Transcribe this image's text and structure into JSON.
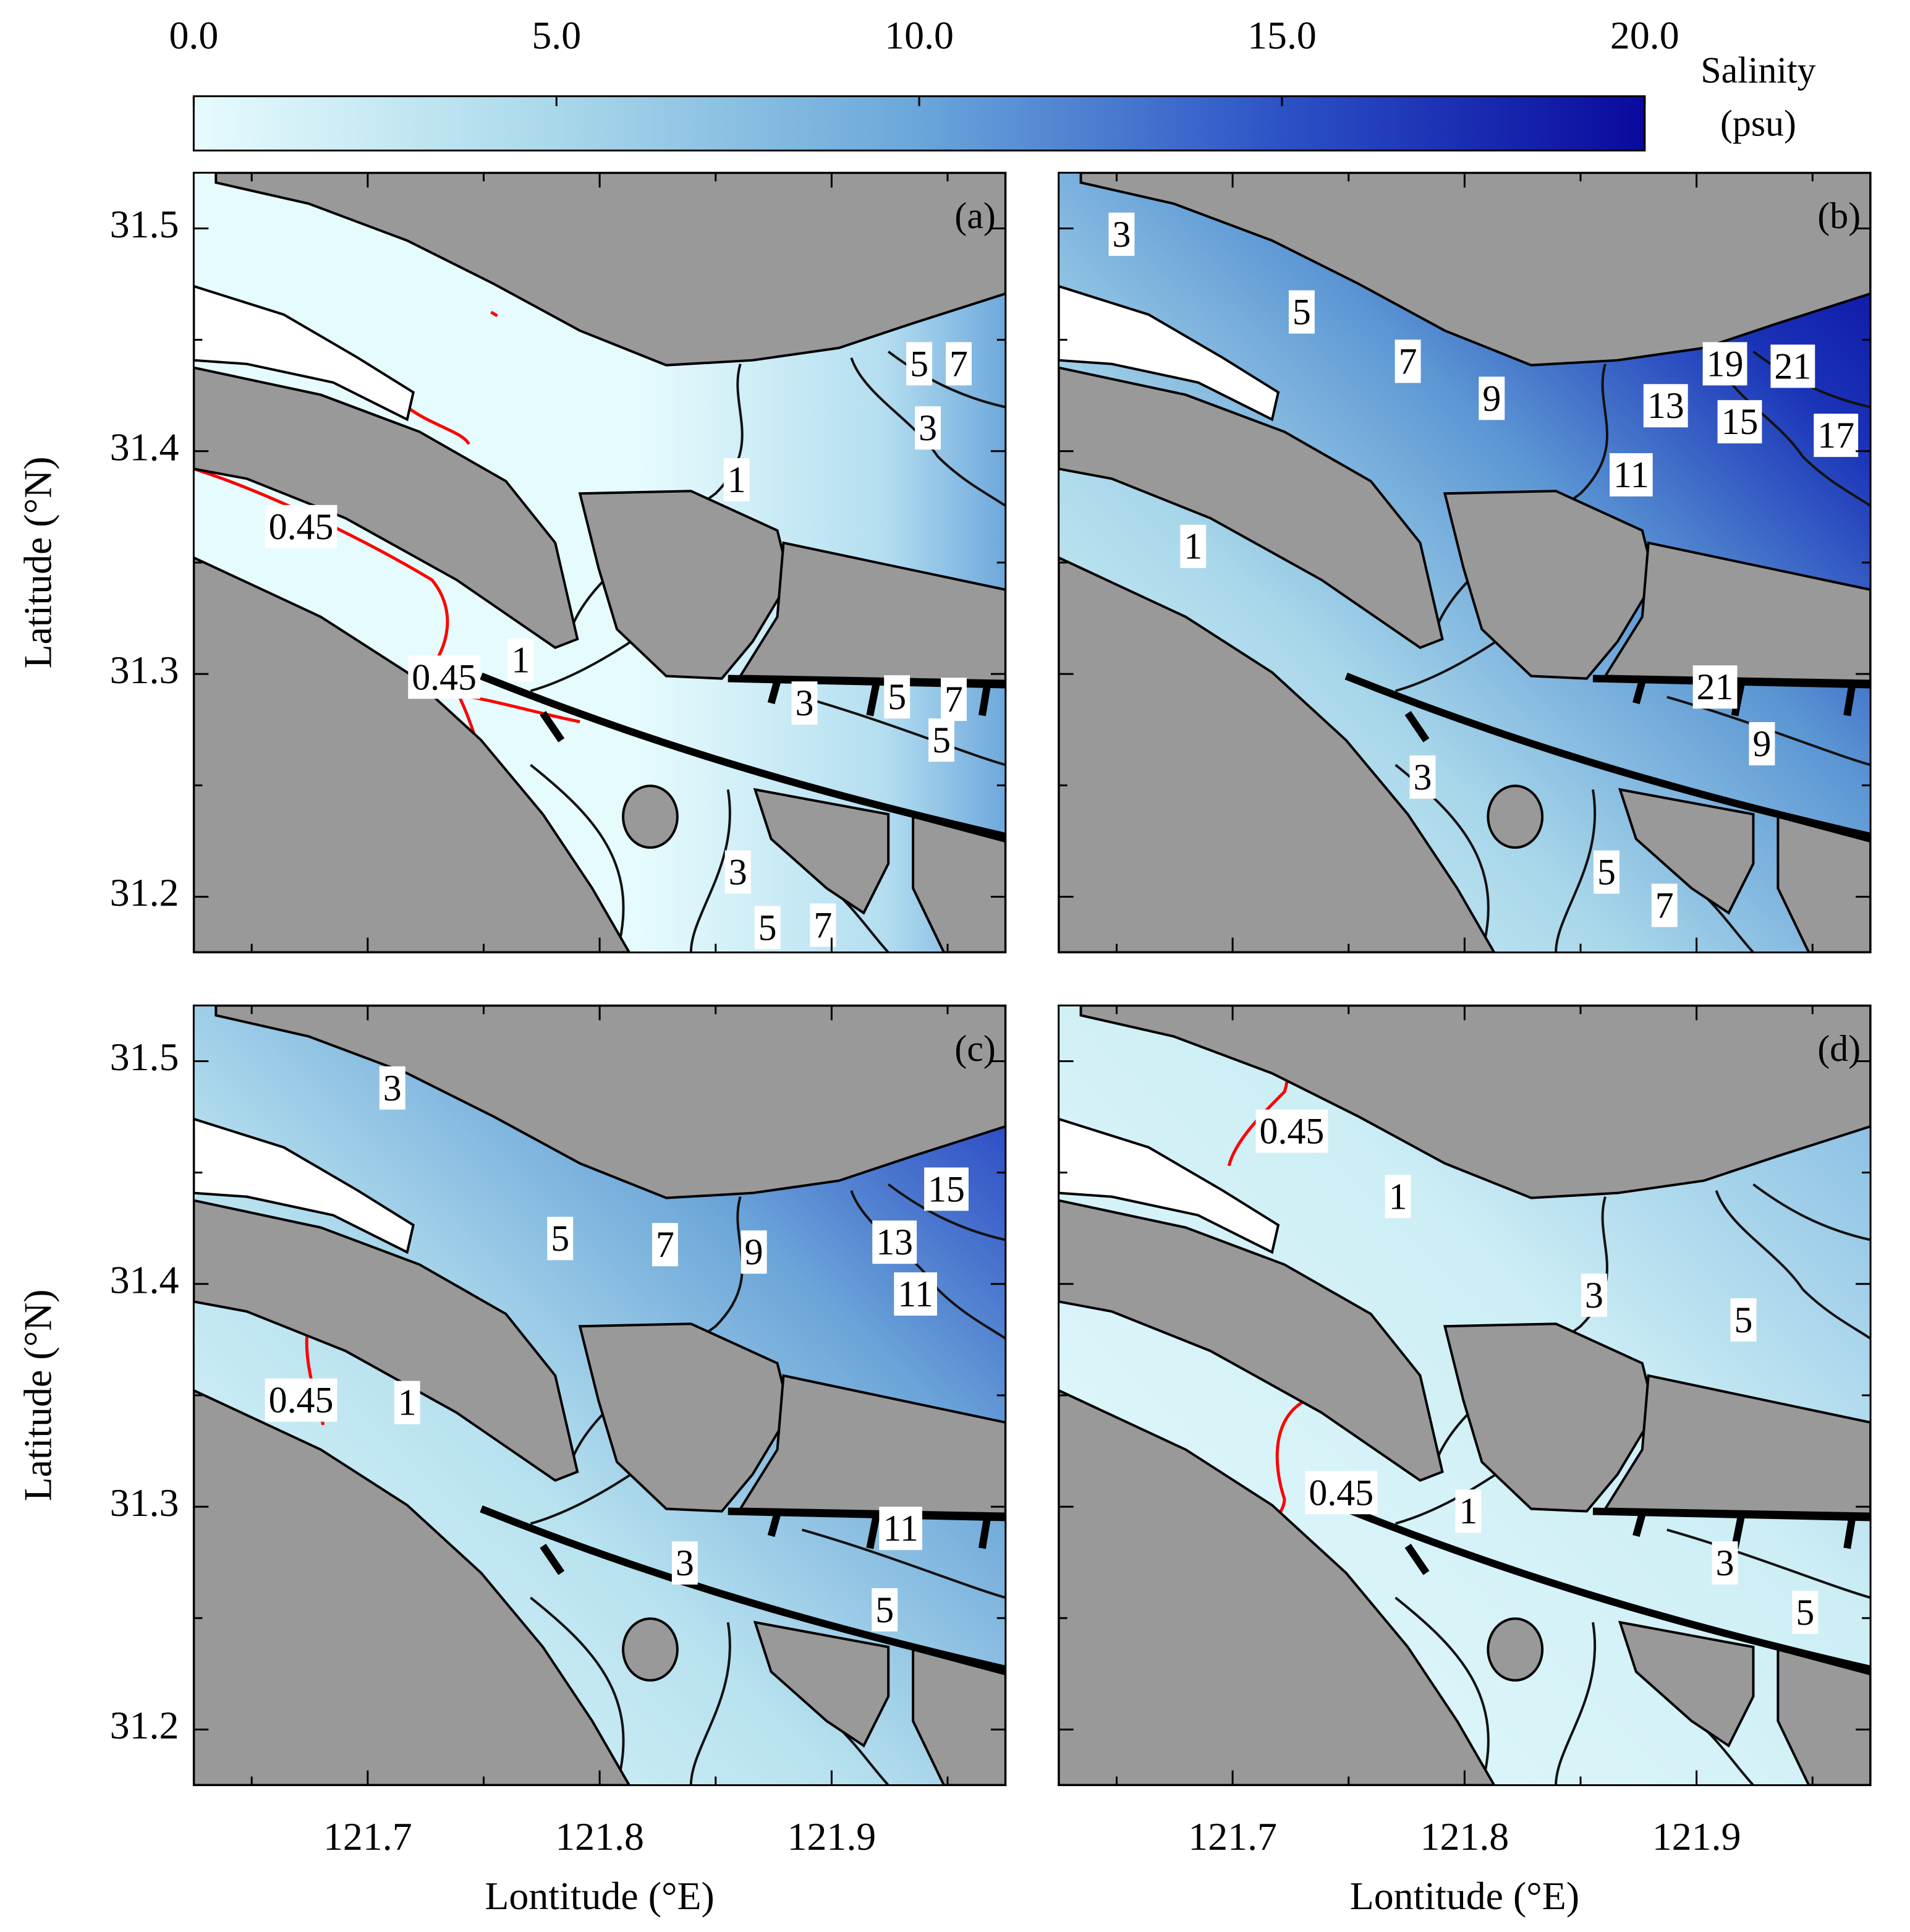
{
  "colorbar": {
    "label_line1": "Salinity",
    "label_line2": "(psu)",
    "lim": [
      0,
      20
    ],
    "ticks": [
      {
        "value": 0,
        "label": "0.0"
      },
      {
        "value": 5,
        "label": "5.0"
      },
      {
        "value": 10,
        "label": "10.0"
      },
      {
        "value": 15,
        "label": "15.0"
      },
      {
        "value": 20,
        "label": "20.0"
      }
    ],
    "colors": [
      "#e6fbfd",
      "#a9d8ea",
      "#6aa6da",
      "#2c52c6",
      "#0a0a9e"
    ]
  },
  "axes": {
    "x_label": "Lontitude (°E)",
    "y_label": "Latitude (°N)",
    "xlim": [
      121.625,
      121.975
    ],
    "ylim": [
      31.175,
      31.525
    ],
    "xticks": [
      121.7,
      121.8,
      121.9
    ],
    "yticks": [
      31.2,
      31.3,
      31.4,
      31.5
    ],
    "minor_xticks": [
      121.65,
      121.75,
      121.85,
      121.95
    ],
    "minor_yticks": [
      31.25,
      31.35,
      31.45
    ]
  },
  "panels": [
    {
      "label": "(a)",
      "contour_labels": [
        "5",
        "7",
        "3",
        "1",
        {
          "text": "0.45",
          "color": "#ff0000"
        },
        "1",
        {
          "text": "0.45",
          "color": "#ff0000"
        },
        "3",
        "5",
        "7",
        "5",
        "3",
        "5",
        "7"
      ]
    },
    {
      "label": "(b)",
      "contour_labels": [
        "3",
        "5",
        "7",
        "9",
        "19",
        "21",
        "13",
        "15",
        "17",
        "11",
        "1",
        "21",
        "9",
        "3",
        "5",
        "7"
      ]
    },
    {
      "label": "(c)",
      "contour_labels": [
        "3",
        "5",
        "7",
        "9",
        "15",
        "13",
        "11",
        {
          "text": "0.45",
          "color": "#ff0000"
        },
        "1",
        "3",
        "5",
        "11"
      ]
    },
    {
      "label": "(d)",
      "contour_labels": [
        {
          "text": "0.45",
          "color": "#ff0000"
        },
        "1",
        "3",
        "5",
        {
          "text": "0.45",
          "color": "#ff0000"
        },
        "1",
        "3",
        "5"
      ]
    }
  ]
}
